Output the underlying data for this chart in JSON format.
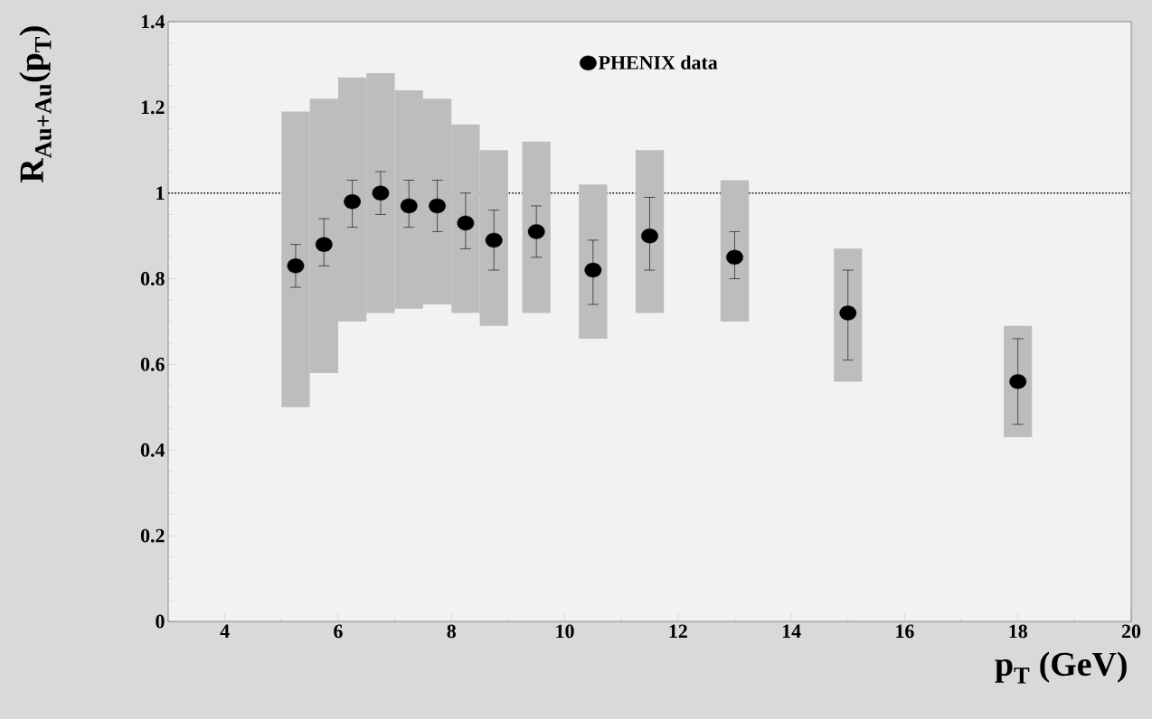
{
  "chart_data": {
    "type": "scatter",
    "xlabel": "p$_{T}$ (GeV)",
    "ylabel": "R$_{Au+Au}$(p$_{T}$)",
    "xlim": [
      3,
      20
    ],
    "xticks": [
      4,
      6,
      8,
      10,
      12,
      14,
      16,
      18,
      20
    ],
    "ylim": [
      0,
      1.4
    ],
    "yticks": [
      0,
      0.2,
      0.4,
      0.6,
      0.8,
      1,
      1.2,
      1.4
    ],
    "legend": "top",
    "marker": "circle",
    "ref_lines": [
      {
        "axis": "y",
        "value": 1,
        "line_style": "dotted"
      }
    ],
    "series": [
      {
        "type": "bar",
        "color": "#bdbdbd",
        "x": [
          5.25,
          5.75,
          6.25,
          6.75,
          7.25,
          7.75,
          8.25,
          8.75,
          9.5,
          10.5,
          11.5,
          13,
          15,
          18
        ],
        "base": [
          0.5,
          0.58,
          0.7,
          0.72,
          0.73,
          0.74,
          0.72,
          0.69,
          0.72,
          0.66,
          0.72,
          0.7,
          0.56,
          0.43
        ],
        "values": [
          0.69,
          0.64,
          0.57,
          0.56,
          0.51,
          0.48,
          0.44,
          0.41,
          0.4,
          0.36,
          0.38,
          0.33,
          0.31,
          0.26
        ]
      },
      {
        "name": "PHENIX data",
        "color": "#000000",
        "x": [
          5.25,
          5.75,
          6.25,
          6.75,
          7.25,
          7.75,
          8.25,
          8.75,
          9.5,
          10.5,
          11.5,
          13,
          15,
          18
        ],
        "values": [
          0.83,
          0.88,
          0.98,
          1.0,
          0.97,
          0.97,
          0.93,
          0.89,
          0.91,
          0.82,
          0.9,
          0.85,
          0.72,
          0.56
        ],
        "errors": [
          [
            0.78,
            0.88
          ],
          [
            0.83,
            0.94
          ],
          [
            0.92,
            1.03
          ],
          [
            0.95,
            1.05
          ],
          [
            0.92,
            1.03
          ],
          [
            0.91,
            1.03
          ],
          [
            0.87,
            1.0
          ],
          [
            0.82,
            0.96
          ],
          [
            0.85,
            0.97
          ],
          [
            0.74,
            0.89
          ],
          [
            0.82,
            0.99
          ],
          [
            0.8,
            0.91
          ],
          [
            0.61,
            0.82
          ],
          [
            0.46,
            0.66
          ]
        ]
      }
    ]
  }
}
